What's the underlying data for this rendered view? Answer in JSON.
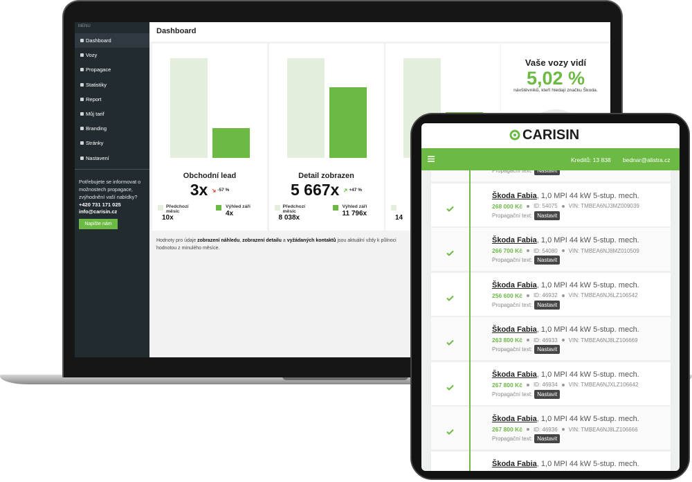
{
  "laptop": {
    "menu_label": "MENU",
    "menu": [
      "Dashboard",
      "Vozy",
      "Propagace",
      "Statistiky",
      "Report",
      "Můj tarif",
      "Branding",
      "Stránky",
      "Nastavení"
    ],
    "sidebar_text": "Potřebujete se informovat o možnostech propagace, zvýhodnění vaší nabídky?",
    "phone": "+420 731 171 025",
    "email": "info@carisin.cz",
    "button": "Napište nám",
    "header": "Dashboard",
    "panels": [
      {
        "title": "Obchodní lead",
        "value": "3x",
        "trend": "-57 %",
        "trend_dir": "down",
        "prev_label": "Předchozí měsíc",
        "prev_value": "10x",
        "next_label": "Výhled září",
        "next_value": "4x"
      },
      {
        "title": "Detail zobrazen",
        "value": "5 667x",
        "trend": "+47 %",
        "trend_dir": "up",
        "prev_label": "Předchozí měsíc",
        "prev_value": "8 038x",
        "next_label": "Výhled září",
        "next_value": "11 796x"
      },
      {
        "prev_value": "14"
      }
    ],
    "share": {
      "title": "Vaše vozy vidí",
      "value": "5,02 %",
      "subtitle": "návštěvníků, kteří hledají značku Škoda."
    },
    "footnote": {
      "parts": [
        "Hodnoty pro údaje ",
        "zobrazení náhledu",
        ", ",
        "zobrazení detailu",
        " a ",
        "vyžádaných kontaktů",
        " jsou aktuální vždy k půlnoci"
      ],
      "line2": "hodnotou z minulého měsíce."
    }
  },
  "tablet": {
    "logo": "CARISIN",
    "credits": "Kreditů: 13 838",
    "user_email": "bednar@alistra.cz",
    "partial_row": {
      "promo_label": "Propagační text:",
      "button": "Nastavit"
    },
    "rows": [
      {
        "title": "Škoda Fabia",
        "spec": ", 1,0 MPI 44 kW 5-stup. mech.",
        "price": "268 000 Kč",
        "id": "ID: 54075",
        "vin": "VIN: TMBEA6NJ3MZ009039",
        "promo_label": "Propagační text:",
        "button": "Nastavit"
      },
      {
        "title": "Škoda Fabia",
        "spec": ", 1,0 MPI 44 kW 5-stup. mech.",
        "price": "266 700 Kč",
        "id": "ID: 54080",
        "vin": "VIN: TMBEA6NJ8MZ010509",
        "promo_label": "Propagační text:",
        "button": "Nastavit"
      },
      {
        "title": "Škoda Fabia",
        "spec": ", 1,0 MPI 44 kW 5-stup. mech.",
        "price": "256 600 Kč",
        "id": "ID: 46932",
        "vin": "VIN: TMBEA6NJ6LZ106542",
        "promo_label": "Propagační text:",
        "button": "Nastavit"
      },
      {
        "title": "Škoda Fabia",
        "spec": ", 1,0 MPI 44 kW 5-stup. mech.",
        "price": "263 800 Kč",
        "id": "ID: 46933",
        "vin": "VIN: TMBEA6NJ8LZ106669",
        "promo_label": "Propagační text:",
        "button": "Nastavit"
      },
      {
        "title": "Škoda Fabia",
        "spec": ", 1,0 MPI 44 kW 5-stup. mech.",
        "price": "267 800 Kč",
        "id": "ID: 46934",
        "vin": "VIN: TMBEA6NJXLZ106642",
        "promo_label": "Propagační text:",
        "button": "Nastavit"
      },
      {
        "title": "Škoda Fabia",
        "spec": ", 1,0 MPI 44 kW 5-stup. mech.",
        "price": "267 800 Kč",
        "id": "ID: 46936",
        "vin": "VIN: TMBEA6NJ8LZ106666",
        "promo_label": "Propagační text:",
        "button": "Nastavit"
      },
      {
        "title": "Škoda Fabia",
        "spec": ", 1,0 MPI 44 kW 5-stup. mech."
      }
    ]
  }
}
